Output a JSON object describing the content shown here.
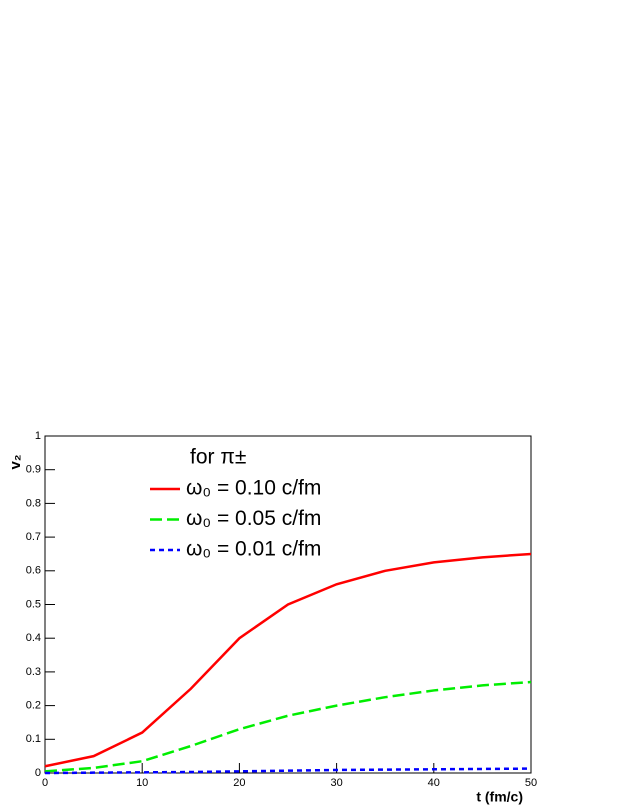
{
  "chart_data": {
    "type": "line",
    "x_label": "t (fm/c)",
    "y_label": "v₂",
    "legend_title": "for  π±",
    "x": [
      0,
      5,
      10,
      15,
      20,
      25,
      30,
      35,
      40,
      45,
      50
    ],
    "series": [
      {
        "name": "ω₀ = 0.10 c/fm",
        "color": "#ff0000",
        "values": [
          0.02,
          0.05,
          0.12,
          0.25,
          0.4,
          0.5,
          0.56,
          0.6,
          0.625,
          0.64,
          0.65
        ]
      },
      {
        "name": "ω₀ = 0.05 c/fm",
        "color": "#00ee00",
        "values": [
          0.005,
          0.015,
          0.035,
          0.08,
          0.13,
          0.17,
          0.2,
          0.225,
          0.245,
          0.26,
          0.27
        ]
      },
      {
        "name": "ω₀ = 0.01 c/fm",
        "color": "#0000ff",
        "values": [
          0,
          0.001,
          0.002,
          0.003,
          0.005,
          0.007,
          0.009,
          0.01,
          0.011,
          0.012,
          0.013
        ]
      }
    ],
    "xlim": [
      0,
      50
    ],
    "xticks": [
      0,
      10,
      20,
      30,
      40,
      50
    ],
    "ylim": [
      0,
      1
    ],
    "yticks": [
      0,
      0.1,
      0.2,
      0.3,
      0.4,
      0.5,
      0.6,
      0.7,
      0.8,
      0.9,
      1
    ],
    "legend": "upper left"
  }
}
